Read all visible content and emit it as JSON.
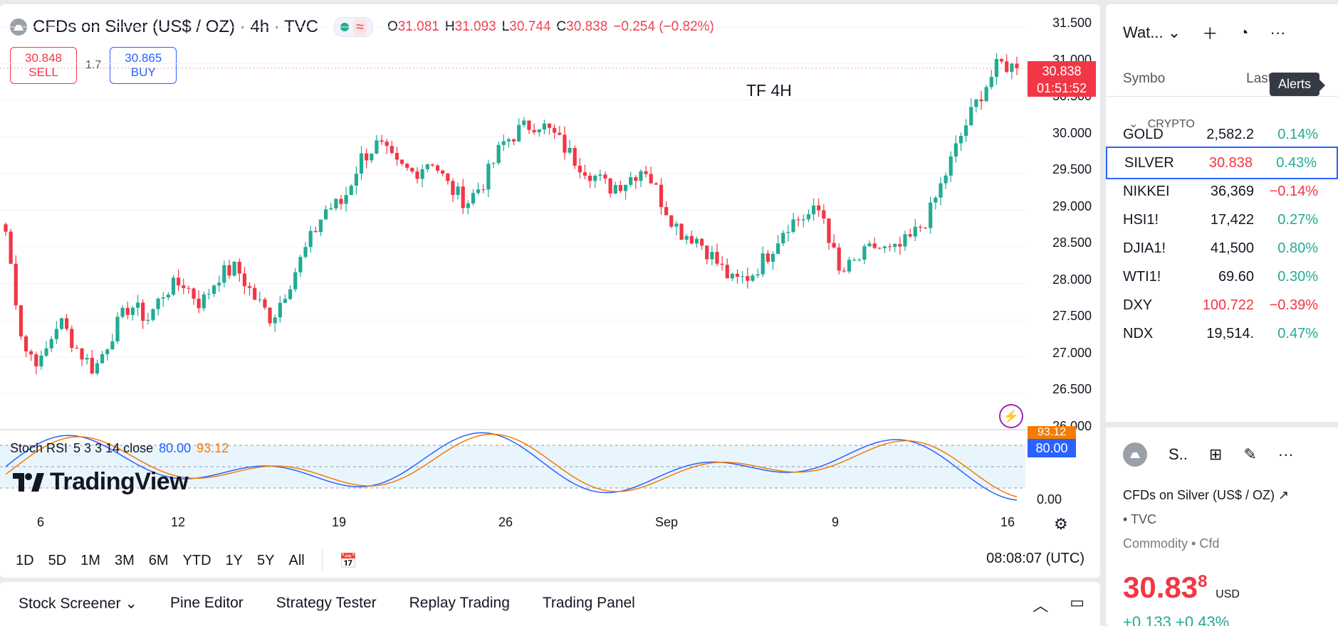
{
  "header": {
    "symbol_title": "CFDs on Silver (US$ / OZ) · 4h · TVC",
    "ohlc": [
      {
        "k": "O",
        "v": "31.081"
      },
      {
        "k": "H",
        "v": "31.093"
      },
      {
        "k": "L",
        "v": "30.744"
      },
      {
        "k": "C",
        "v": "30.838"
      }
    ],
    "change": "−0.254 (−0.82%)"
  },
  "trade": {
    "sell_price": "30.848",
    "sell_label": "SELL",
    "spread": "1.7",
    "buy_price": "30.865",
    "buy_label": "BUY"
  },
  "annotation": "TF 4H",
  "price_axis": [
    "31.500",
    "31.000",
    "30.500",
    "30.000",
    "29.500",
    "29.000",
    "28.500",
    "28.000",
    "27.500",
    "27.000",
    "26.500",
    "26.000"
  ],
  "last_price": {
    "value": "30.838",
    "countdown": "01:51:52"
  },
  "indicator": {
    "name": "Stoch RSI",
    "params": "5 3 3 14 close",
    "k": "80.00",
    "d": "93.12",
    "axis_zero": "0.00"
  },
  "logo_text": "TradingView",
  "x_axis": [
    "6",
    "12",
    "19",
    "26",
    "Sep",
    "9",
    "16"
  ],
  "timeframes": [
    "1D",
    "5D",
    "1M",
    "3M",
    "6M",
    "YTD",
    "1Y",
    "5Y",
    "All"
  ],
  "clock": "08:08:07 (UTC)",
  "bottom_tabs": [
    "Stock Screener",
    "Pine Editor",
    "Strategy Tester",
    "Replay Trading",
    "Trading Panel"
  ],
  "watchlist": {
    "title": "Wat...",
    "col_symbol": "Symbo",
    "col_last": "Last",
    "tooltip": "Alerts",
    "group": "CRYPTO",
    "rows": [
      {
        "sym": "GOLD",
        "last": "2,582.2",
        "chg": "0.14%",
        "dir": "up"
      },
      {
        "sym": "SILVER",
        "last": "30.838",
        "chg": "0.43%",
        "dir": "up"
      },
      {
        "sym": "NIKKEI",
        "last": "36,369",
        "chg": "−0.14%",
        "dir": "down"
      },
      {
        "sym": "HSI1!",
        "last": "17,422",
        "chg": "0.27%",
        "dir": "up"
      },
      {
        "sym": "DJIA1!",
        "last": "41,500",
        "chg": "0.80%",
        "dir": "up"
      },
      {
        "sym": "WTI1!",
        "last": "69.60",
        "chg": "0.30%",
        "dir": "up"
      },
      {
        "sym": "DXY",
        "last": "100.722",
        "chg": "−0.39%",
        "dir": "down"
      },
      {
        "sym": "NDX",
        "last": "19,514.",
        "chg": "0.47%",
        "dir": "up"
      }
    ]
  },
  "details": {
    "short": "S..",
    "name": "CFDs on Silver (US$ / OZ)",
    "exchange": "TVC",
    "category": "Commodity • Cfd",
    "price": "30.83",
    "price_sup": "8",
    "currency": "USD",
    "change": "+0.133 +0.43%"
  },
  "chart_data": {
    "type": "candlestick",
    "title": "CFDs on Silver (US$ / OZ) · 4h · TVC",
    "y_range": [
      26.0,
      31.5
    ],
    "series_close_approx": [
      28.6,
      27.0,
      26.8,
      27.4,
      27.0,
      26.7,
      27.2,
      27.6,
      27.4,
      27.8,
      27.9,
      27.6,
      28.0,
      28.1,
      27.7,
      27.4,
      27.9,
      28.4,
      28.9,
      29.0,
      29.6,
      29.8,
      29.5,
      29.4,
      29.6,
      29.2,
      29.0,
      29.3,
      29.8,
      30.0,
      30.1,
      29.9,
      29.6,
      29.4,
      29.2,
      29.3,
      29.5,
      29.0,
      28.6,
      28.5,
      28.2,
      27.9,
      28.0,
      28.3,
      28.7,
      28.8,
      28.9,
      28.0,
      28.2,
      28.4,
      28.3,
      28.5,
      28.8,
      29.4,
      30.0,
      30.5,
      30.9,
      30.838
    ],
    "last": 30.838,
    "x_labels": [
      "6",
      "12",
      "19",
      "26",
      "Sep",
      "9",
      "16"
    ]
  }
}
